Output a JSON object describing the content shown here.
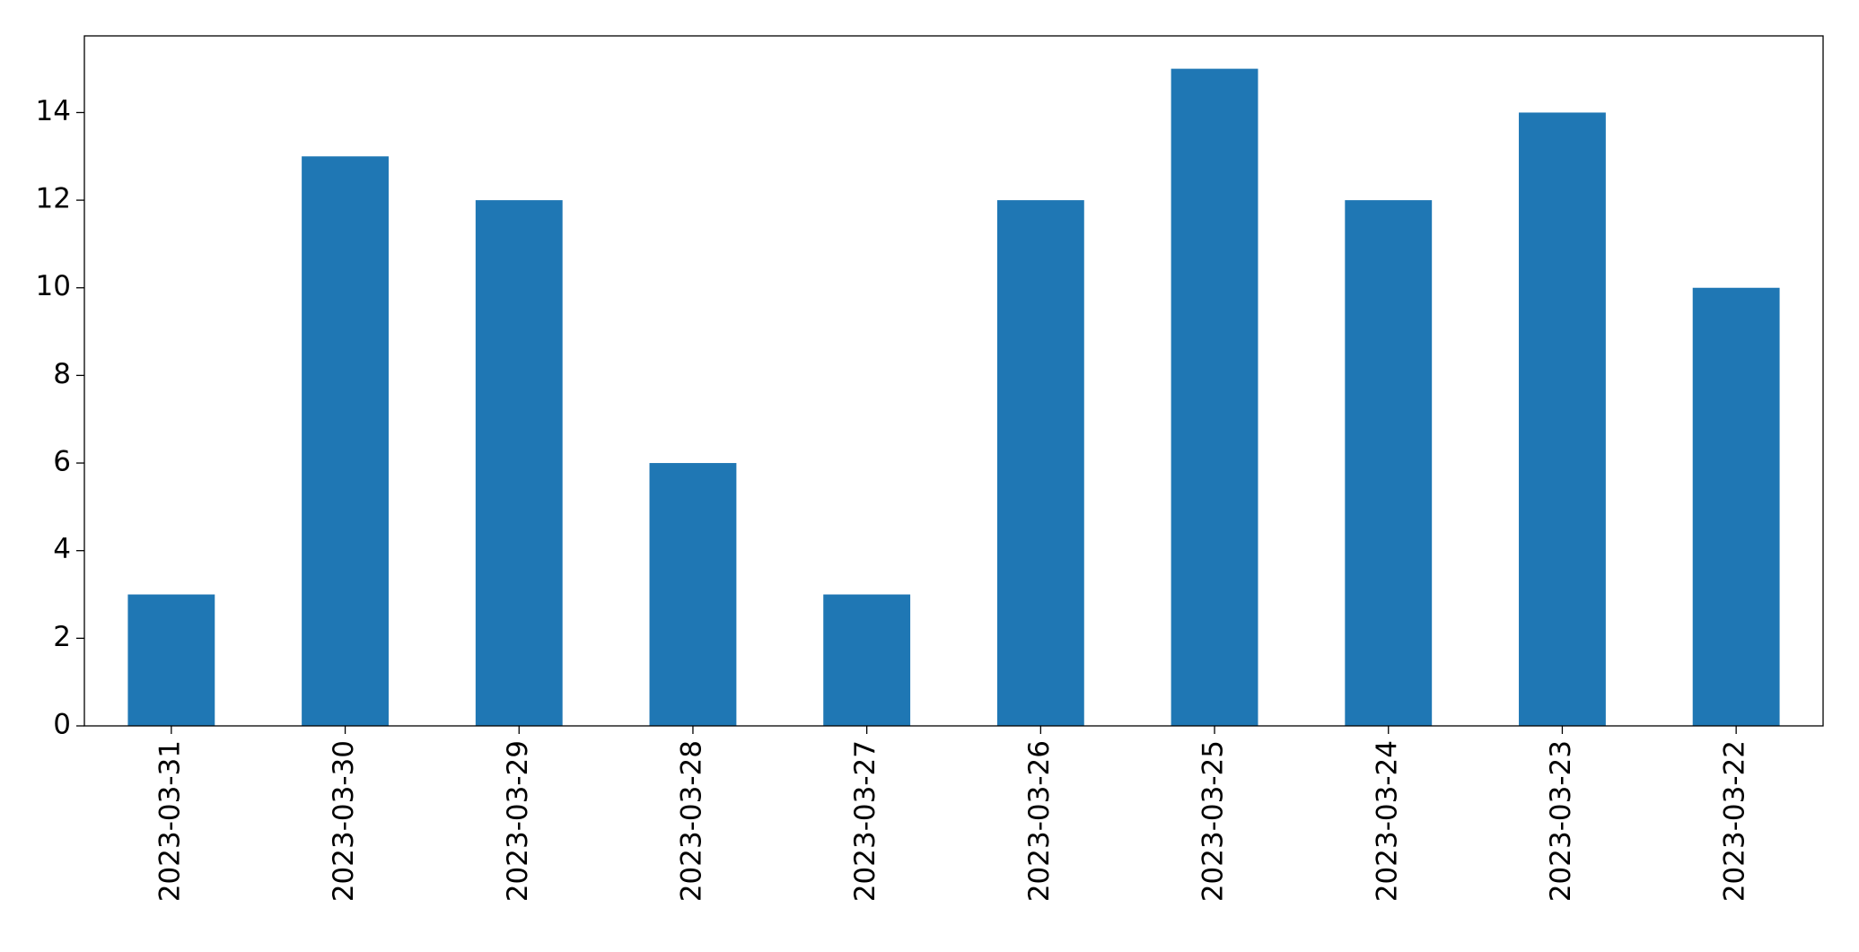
{
  "chart_data": {
    "type": "bar",
    "categories": [
      "2023-03-31",
      "2023-03-30",
      "2023-03-29",
      "2023-03-28",
      "2023-03-27",
      "2023-03-26",
      "2023-03-25",
      "2023-03-24",
      "2023-03-23",
      "2023-03-22"
    ],
    "values": [
      3,
      13,
      12,
      6,
      3,
      12,
      15,
      12,
      14,
      10
    ],
    "color": "#1f77b4",
    "ylim": [
      0,
      15.75
    ],
    "yticks": [
      0,
      2,
      4,
      6,
      8,
      10,
      12,
      14
    ],
    "grid": false
  }
}
